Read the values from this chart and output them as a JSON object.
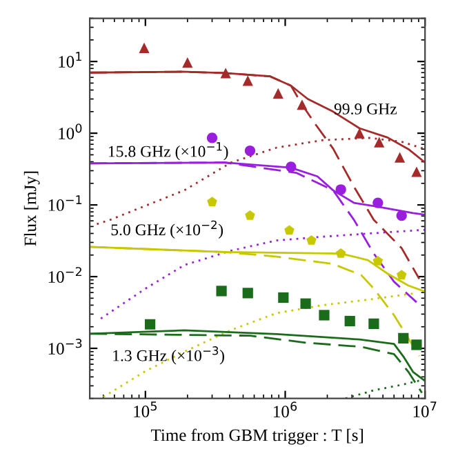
{
  "chart_data": {
    "type": "scatter",
    "xlabel": "Time from GBM trigger : T [s]",
    "ylabel": "Flux [mJy]",
    "log": "xy",
    "xlim": [
      40000,
      10000000
    ],
    "ylim": [
      0.0002,
      40
    ],
    "xticks": [
      {
        "value": 100000,
        "label": "10$^{5}$"
      },
      {
        "value": 1000000,
        "label": "10$^{6}$"
      },
      {
        "value": 10000000,
        "label": "10$^{7}$"
      }
    ],
    "yticks": [
      {
        "value": 0.001,
        "label": "10$^{−3}$"
      },
      {
        "value": 0.01,
        "label": "10$^{−2}$"
      },
      {
        "value": 0.1,
        "label": "10$^{−1}$"
      },
      {
        "value": 1,
        "label": "10$^{0}$"
      },
      {
        "value": 10,
        "label": "10$^{1}$"
      }
    ],
    "grid": false,
    "series": [
      {
        "type": "line",
        "line_style": "dotted",
        "color": "#a52a2a",
        "x": [
          45000,
          56000,
          190000,
          410000,
          870000,
          1860000,
          4000000,
          6800000,
          10000000
        ],
        "values": [
          0.054,
          0.062,
          0.16,
          0.39,
          0.63,
          0.8,
          0.86,
          0.76,
          0.6
        ]
      },
      {
        "type": "line",
        "line_style": "dotted",
        "color": "#9a1ee0",
        "x": [
          48000,
          100000,
          190000,
          410000,
          870000,
          1860000,
          4000000,
          10000000
        ],
        "values": [
          0.0026,
          0.0068,
          0.0145,
          0.023,
          0.032,
          0.036,
          0.04,
          0.045
        ]
      },
      {
        "type": "line",
        "line_style": "dotted",
        "color": "#c8c800",
        "x": [
          50000,
          100000,
          190000,
          410000,
          870000,
          1860000,
          4000000,
          8700000
        ],
        "values": [
          0.00021,
          0.00048,
          0.0009,
          0.0018,
          0.0031,
          0.004,
          0.0048,
          0.0059
        ]
      },
      {
        "type": "line",
        "line_style": "dotted",
        "color": "#1a6b1a",
        "x": [
          2700000,
          4300000,
          6800000,
          10000000
        ],
        "values": [
          0.0002,
          0.00026,
          0.00031,
          0.00037
        ]
      },
      {
        "type": "line",
        "line_style": "dashed",
        "color": "#a52a2a",
        "x": [
          40000,
          180000,
          370000,
          780000,
          1100000,
          1320000,
          1660000,
          2200000,
          3100000,
          4300000,
          6800000,
          9100000
        ],
        "values": [
          7.0,
          7.2,
          6.9,
          6.2,
          4.6,
          2.5,
          1.3,
          0.61,
          0.18,
          0.062,
          0.025,
          0.0093
        ]
      },
      {
        "type": "line",
        "line_style": "dashed",
        "color": "#9a1ee0",
        "x": [
          40000,
          370000,
          1200000,
          2200000,
          3100000,
          4300000,
          6000000,
          8700000
        ],
        "values": [
          0.38,
          0.39,
          0.28,
          0.16,
          0.062,
          0.021,
          0.0085,
          0.0044
        ]
      },
      {
        "type": "line",
        "line_style": "dashed",
        "color": "#c8c800",
        "x": [
          40000,
          370000,
          870000,
          2200000,
          3500000,
          4300000,
          6000000,
          9100000
        ],
        "values": [
          0.026,
          0.022,
          0.019,
          0.015,
          0.0105,
          0.0068,
          0.0029,
          0.00078
        ]
      },
      {
        "type": "line",
        "line_style": "dashed",
        "color": "#1a6b1a",
        "x": [
          40000,
          560000,
          1400000,
          3500000,
          6000000,
          7600000,
          9500000
        ],
        "values": [
          0.0016,
          0.0015,
          0.0012,
          0.00105,
          0.00083,
          0.00047,
          0.00024
        ]
      },
      {
        "type": "line",
        "line_style": "solid",
        "color": "#a52a2a",
        "x": [
          40000,
          180000,
          370000,
          780000,
          1100000,
          1450000,
          2200000,
          3400000,
          5400000,
          7600000,
          10000000
        ],
        "values": [
          7.0,
          7.2,
          6.9,
          6.2,
          4.6,
          3.0,
          2.0,
          1.17,
          0.87,
          0.6,
          0.39
        ]
      },
      {
        "type": "line",
        "line_style": "solid",
        "color": "#9a1ee0",
        "x": [
          40000,
          370000,
          1100000,
          1700000,
          2200000,
          3100000,
          4500000,
          8200000,
          10000000
        ],
        "values": [
          0.38,
          0.39,
          0.33,
          0.25,
          0.16,
          0.107,
          0.095,
          0.077,
          0.073
        ]
      },
      {
        "type": "line",
        "line_style": "solid",
        "color": "#c8c800",
        "x": [
          40000,
          370000,
          2500000,
          3900000,
          5400000,
          7600000,
          10000000
        ],
        "values": [
          0.026,
          0.022,
          0.021,
          0.017,
          0.011,
          0.0075,
          0.0062
        ]
      },
      {
        "type": "line",
        "line_style": "solid",
        "color": "#1a6b1a",
        "x": [
          40000,
          190000,
          870000,
          3400000,
          6000000,
          7000000,
          8200000,
          10000000
        ],
        "values": [
          0.0016,
          0.00178,
          0.00158,
          0.00133,
          0.00115,
          0.00077,
          0.00047,
          0.00035
        ]
      },
      {
        "marker": "triangle",
        "color": "#a52a2a",
        "x": [
          98000,
          200000,
          375000,
          540000,
          890000,
          1320000,
          3400000,
          4700000,
          6600000,
          8700000
        ],
        "values": [
          15.5,
          9.7,
          6.9,
          5.4,
          3.6,
          2.5,
          1.0,
          0.75,
          0.46,
          0.29
        ]
      },
      {
        "marker": "circle",
        "color": "#9a1ee0",
        "x": [
          300000,
          560000,
          1100000,
          2500000,
          4600000,
          6800000
        ],
        "values": [
          0.86,
          0.57,
          0.34,
          0.164,
          0.107,
          0.071
        ]
      },
      {
        "color": "#c8c800",
        "x": [
          300000,
          560000,
          1070000,
          1540000,
          2500000,
          4600000,
          6800000
        ],
        "values": [
          0.11,
          0.071,
          0.044,
          0.032,
          0.021,
          0.0164,
          0.0105
        ]
      },
      {
        "marker": "square",
        "color": "#1a6b1a",
        "x": [
          108000,
          350000,
          540000,
          970000,
          1400000,
          1900000,
          2900000,
          4300000,
          7000000,
          8700000
        ],
        "values": [
          0.00216,
          0.0063,
          0.0059,
          0.0051,
          0.0042,
          0.0029,
          0.0024,
          0.0022,
          0.00138,
          0.00112
        ]
      }
    ],
    "annotations": [
      "99.9 GHz",
      "15.8 GHz (×10$^{−1}$)",
      "5.0 GHz (×10$^{−2}$)",
      "1.3 GHz (×10$^{−3}$)"
    ]
  }
}
